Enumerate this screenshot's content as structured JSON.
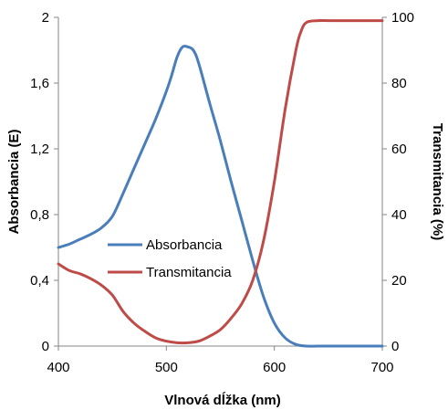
{
  "chart_data": {
    "type": "line",
    "xlabel": "Vlnová dĺžka (nm)",
    "ylabel_left": "Absorbancia (E)",
    "ylabel_right": "Transmitancia (%)",
    "xlim": [
      400,
      700
    ],
    "ylim_left": [
      0,
      2
    ],
    "ylim_right": [
      0,
      100
    ],
    "x_ticks": [
      "400",
      "500",
      "600",
      "700"
    ],
    "y_left_ticks": [
      "0",
      "0,4",
      "0,8",
      "1,2",
      "1,6",
      "2"
    ],
    "y_right_ticks": [
      "0",
      "20",
      "40",
      "60",
      "80",
      "100"
    ],
    "grid": false,
    "legend_position": "center-left",
    "series": [
      {
        "name": "Absorbancia",
        "axis": "left",
        "color": "#4a7ebb",
        "x": [
          400,
          410,
          420,
          430,
          440,
          450,
          460,
          470,
          480,
          490,
          500,
          505,
          510,
          515,
          520,
          525,
          530,
          540,
          550,
          560,
          570,
          580,
          590,
          600,
          610,
          620,
          630,
          640,
          650,
          660,
          680,
          700
        ],
        "y": [
          0.6,
          0.62,
          0.65,
          0.68,
          0.72,
          0.79,
          0.93,
          1.08,
          1.23,
          1.38,
          1.55,
          1.65,
          1.76,
          1.82,
          1.82,
          1.8,
          1.72,
          1.48,
          1.25,
          1.0,
          0.76,
          0.52,
          0.3,
          0.14,
          0.05,
          0.01,
          0.0,
          0.0,
          0.0,
          0.0,
          0.0,
          0.0
        ]
      },
      {
        "name": "Transmitancia",
        "axis": "right",
        "color": "#be4b48",
        "x": [
          400,
          410,
          420,
          430,
          440,
          450,
          460,
          470,
          480,
          490,
          500,
          510,
          520,
          530,
          540,
          550,
          560,
          570,
          580,
          590,
          600,
          610,
          620,
          625,
          630,
          640,
          650,
          660,
          680,
          700
        ],
        "y": [
          25,
          23,
          22,
          20.5,
          18.5,
          15.5,
          10.5,
          7,
          4.5,
          2.5,
          1.5,
          1,
          1,
          1.5,
          3,
          5,
          8.5,
          13,
          20,
          32,
          50,
          72,
          90,
          96,
          98.5,
          99,
          99,
          99,
          99,
          99
        ]
      }
    ]
  }
}
